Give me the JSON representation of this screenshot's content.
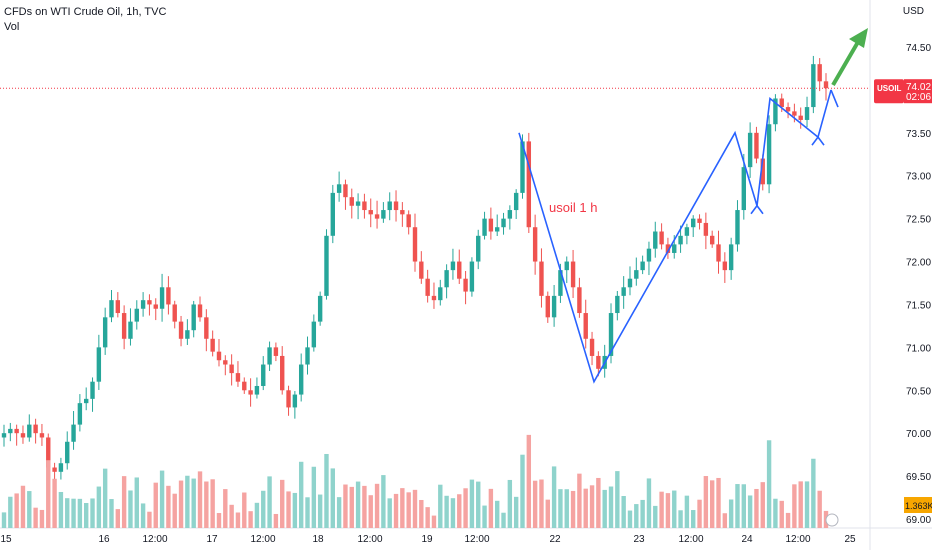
{
  "header": {
    "symbol": "CFDs on WTI Crude Oil, 1h, TVC",
    "volume_label": "Vol"
  },
  "currency": "USD",
  "price_tag": {
    "symbol": "USOIL",
    "price": "74.02",
    "countdown": "02:06",
    "color": "#f23645"
  },
  "volume_tag": {
    "value": "1.363K",
    "color": "#f7a600"
  },
  "colors": {
    "up": "#26a69a",
    "down": "#ef5350",
    "up_vol": "#8fd3cc",
    "down_vol": "#f5a3a1",
    "drawing": "#2962ff",
    "arrow": "#4caf50",
    "annotation": "#f23645"
  },
  "annotation": "usoil 1 h",
  "chart_data": {
    "type": "candlestick",
    "title": "CFDs on WTI Crude Oil, 1h, TVC",
    "y_axis": {
      "ticks": [
        "69.00",
        "69.50",
        "70.00",
        "70.50",
        "71.00",
        "71.50",
        "72.00",
        "72.50",
        "73.00",
        "73.50",
        "74.00",
        "74.50"
      ],
      "ylim": [
        69.0,
        74.7
      ],
      "unit": "USD"
    },
    "x_axis": {
      "ticks": [
        "15",
        "16",
        "12:00",
        "17",
        "12:00",
        "18",
        "12:00",
        "19",
        "12:00",
        "22",
        "23",
        "12:00",
        "24",
        "12:00",
        "25"
      ]
    },
    "last_price": 74.02,
    "trend_path_prices": [
      73.5,
      70.6,
      73.5,
      72.65,
      73.9,
      73.45,
      74.0
    ],
    "series": [
      {
        "name": "Price",
        "close_path": [
          70.0,
          70.05,
          70.0,
          69.95,
          70.1,
          70.0,
          69.95,
          69.6,
          69.55,
          69.65,
          69.9,
          70.1,
          70.35,
          70.4,
          70.6,
          71.0,
          71.35,
          71.55,
          71.4,
          71.1,
          71.3,
          71.45,
          71.55,
          71.5,
          71.45,
          71.7,
          71.5,
          71.3,
          71.1,
          71.2,
          71.5,
          71.35,
          71.1,
          70.95,
          70.85,
          70.8,
          70.7,
          70.6,
          70.5,
          70.45,
          70.55,
          70.8,
          71.0,
          70.9,
          70.5,
          70.3,
          70.45,
          70.8,
          71.0,
          71.3,
          71.6,
          72.3,
          72.8,
          72.9,
          72.75,
          72.65,
          72.7,
          72.6,
          72.55,
          72.5,
          72.6,
          72.7,
          72.6,
          72.55,
          72.4,
          72.0,
          71.8,
          71.6,
          71.55,
          71.7,
          71.9,
          72.0,
          71.8,
          71.65,
          72.0,
          72.3,
          72.5,
          72.35,
          72.4,
          72.5,
          72.6,
          72.8,
          73.4,
          72.4,
          72.0,
          71.6,
          71.35,
          71.6,
          71.9,
          72.0,
          71.7,
          71.4,
          71.1,
          70.9,
          70.75,
          70.9,
          71.4,
          71.6,
          71.7,
          71.8,
          71.9,
          72.0,
          72.15,
          72.35,
          72.2,
          72.1,
          72.2,
          72.3,
          72.4,
          72.5,
          72.45,
          72.3,
          72.2,
          72.0,
          71.9,
          72.2,
          72.6,
          73.1,
          73.5,
          73.2,
          72.9,
          73.6,
          73.9,
          73.8,
          73.75,
          73.7,
          73.65,
          73.8,
          74.3,
          74.1,
          74.02
        ]
      }
    ]
  }
}
